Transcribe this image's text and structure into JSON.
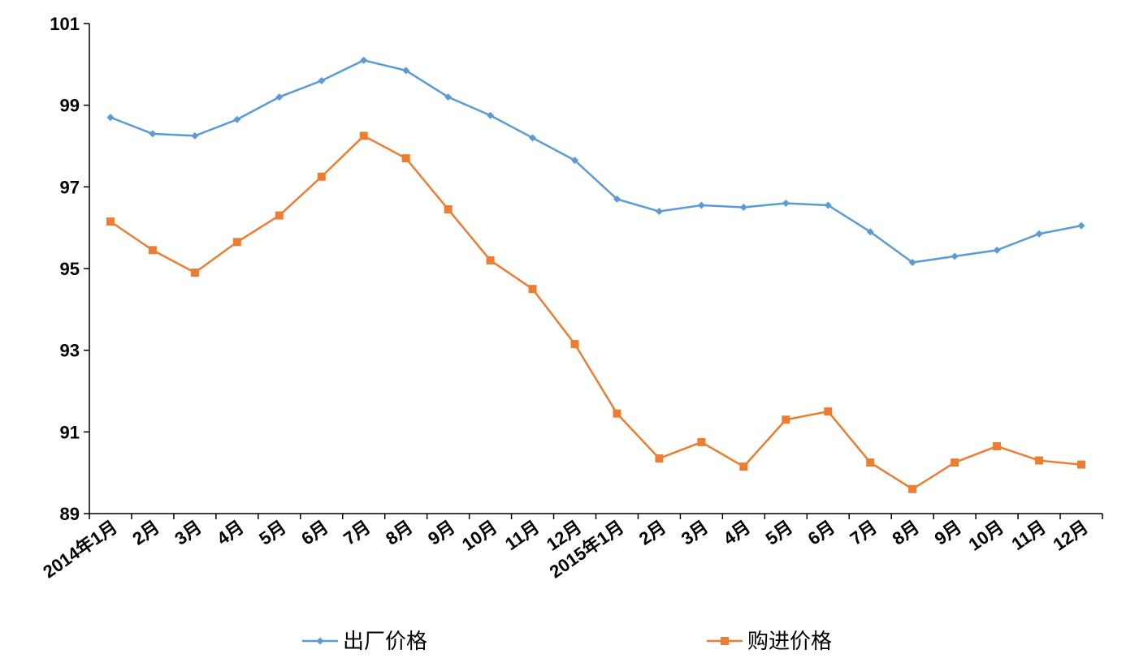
{
  "chart_data": {
    "type": "line",
    "title": "",
    "xlabel": "",
    "ylabel": "",
    "ylim": [
      89,
      101
    ],
    "yticks": [
      89,
      91,
      93,
      95,
      97,
      99,
      101
    ],
    "grid": false,
    "legend_position": "bottom",
    "categories": [
      "2014年1月",
      "2月",
      "3月",
      "4月",
      "5月",
      "6月",
      "7月",
      "8月",
      "9月",
      "10月",
      "11月",
      "12月",
      "2015年1月",
      "2月",
      "3月",
      "4月",
      "5月",
      "6月",
      "7月",
      "8月",
      "9月",
      "10月",
      "11月",
      "12月"
    ],
    "series": [
      {
        "name": "出厂价格",
        "color": "#5B9BD5",
        "marker": "diamond",
        "values": [
          98.7,
          98.3,
          98.25,
          98.65,
          99.2,
          99.6,
          100.1,
          99.85,
          99.2,
          98.75,
          98.2,
          97.65,
          96.7,
          96.4,
          96.55,
          96.5,
          96.6,
          96.55,
          95.9,
          95.15,
          95.3,
          95.45,
          95.85,
          96.05
        ]
      },
      {
        "name": "购进价格",
        "color": "#ED7D31",
        "marker": "square",
        "values": [
          96.15,
          95.45,
          94.9,
          95.65,
          96.3,
          97.25,
          98.25,
          97.7,
          96.45,
          95.2,
          94.5,
          93.15,
          91.45,
          90.35,
          90.75,
          90.15,
          91.3,
          91.5,
          90.25,
          89.6,
          90.25,
          90.65,
          90.3,
          90.2
        ]
      }
    ]
  }
}
